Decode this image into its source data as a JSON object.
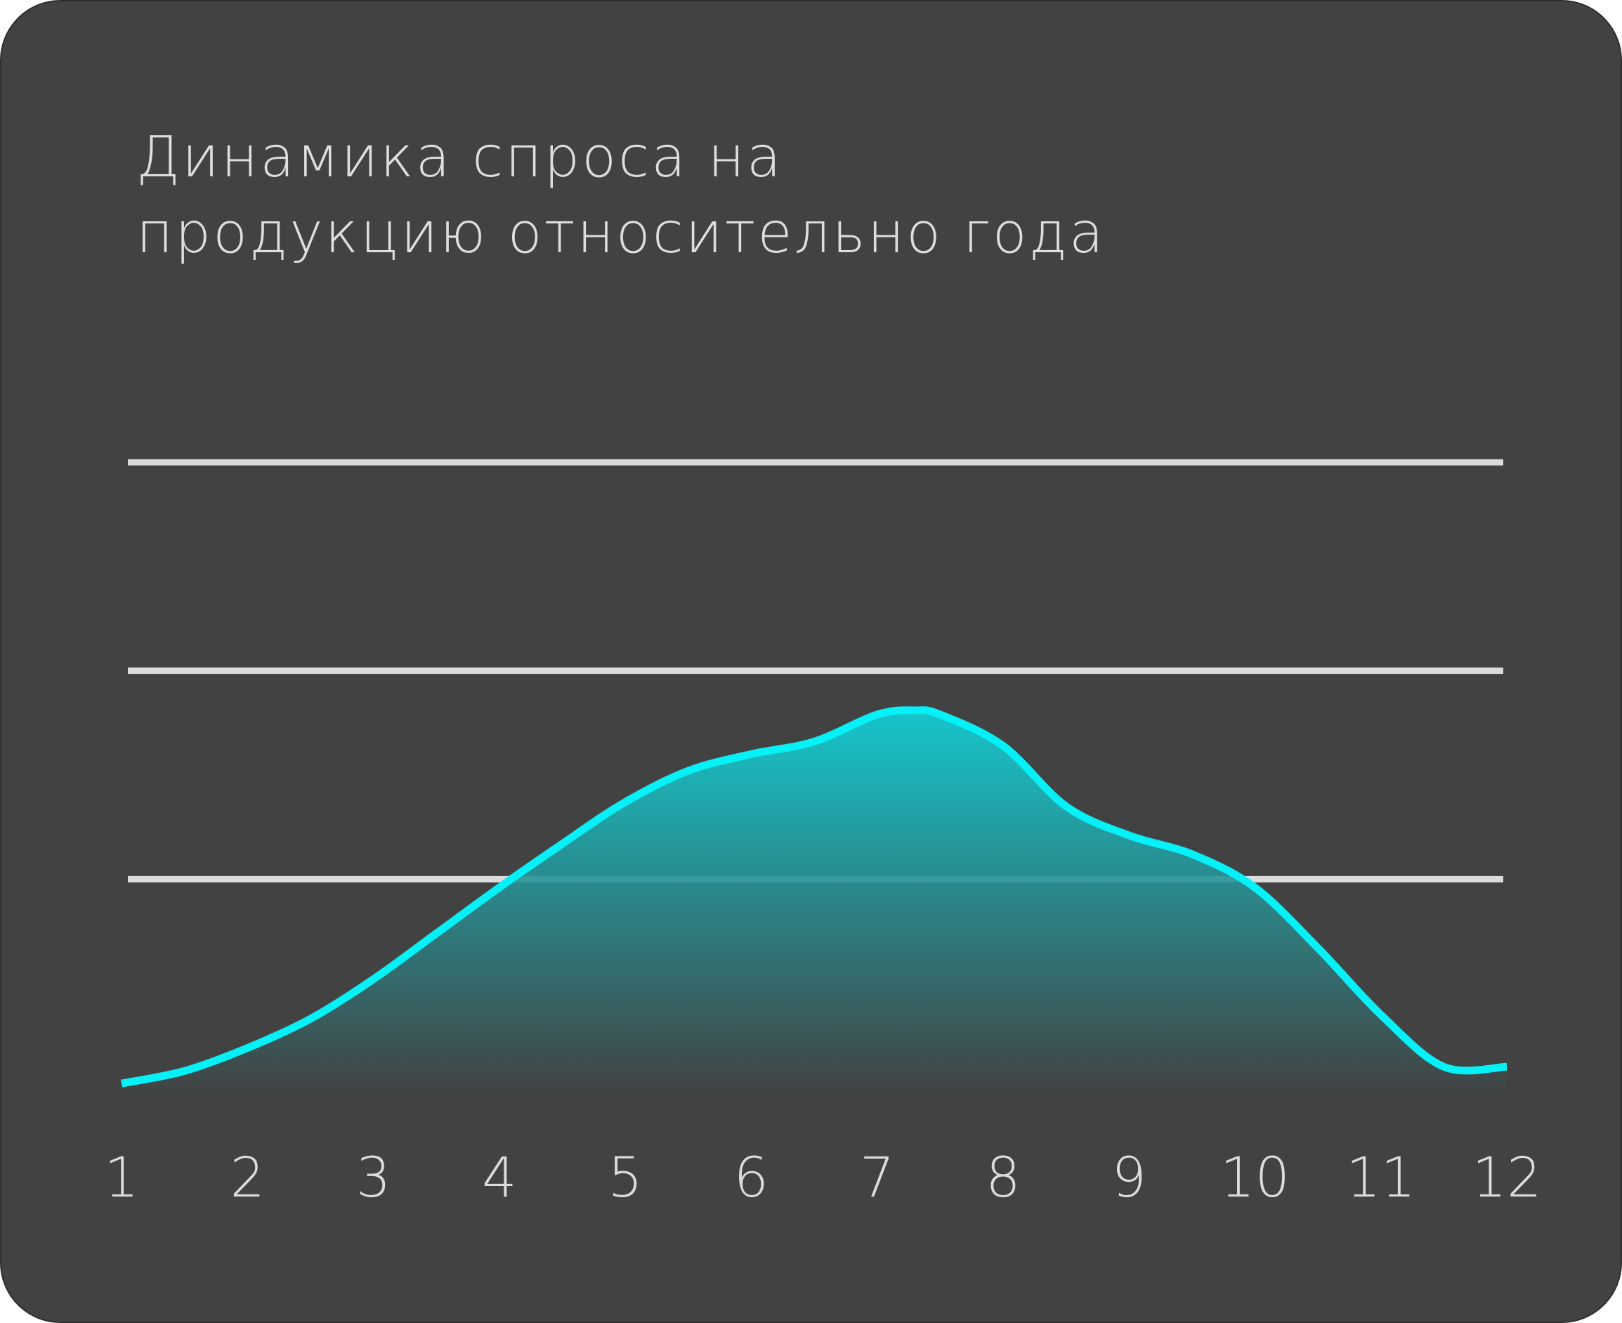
{
  "chart_data": {
    "type": "area",
    "title_lines": [
      "Динамика спроса на",
      "продукцию относительно года"
    ],
    "xlabel": "",
    "ylabel": "",
    "x": [
      "1",
      "2",
      "3",
      "4",
      "5",
      "6",
      "7",
      "8",
      "9",
      "10",
      "11",
      "12"
    ],
    "curve": [
      [
        1,
        0.02
      ],
      [
        1.5,
        0.08
      ],
      [
        2,
        0.19
      ],
      [
        2.5,
        0.33
      ],
      [
        3,
        0.52
      ],
      [
        3.5,
        0.74
      ],
      [
        4,
        0.96
      ],
      [
        4.5,
        1.17
      ],
      [
        5,
        1.37
      ],
      [
        5.5,
        1.52
      ],
      [
        6,
        1.6
      ],
      [
        6.5,
        1.66
      ],
      [
        7,
        1.79
      ],
      [
        7.3,
        1.81
      ],
      [
        7.5,
        1.79
      ],
      [
        8,
        1.64
      ],
      [
        8.5,
        1.35
      ],
      [
        9,
        1.21
      ],
      [
        9.5,
        1.12
      ],
      [
        10,
        0.96
      ],
      [
        10.5,
        0.67
      ],
      [
        11,
        0.35
      ],
      [
        11.5,
        0.1
      ],
      [
        12,
        0.1
      ]
    ],
    "gridlines": [
      1,
      2,
      3
    ],
    "ylim": [
      0,
      3
    ],
    "grid": true,
    "legend": "none",
    "colors": {
      "line": "#06f1f7",
      "fill_top": "#10d4da",
      "fill_bottom": "#424242",
      "grid": "#dcdcdc",
      "background": "#424242",
      "text": "#dedede"
    }
  }
}
